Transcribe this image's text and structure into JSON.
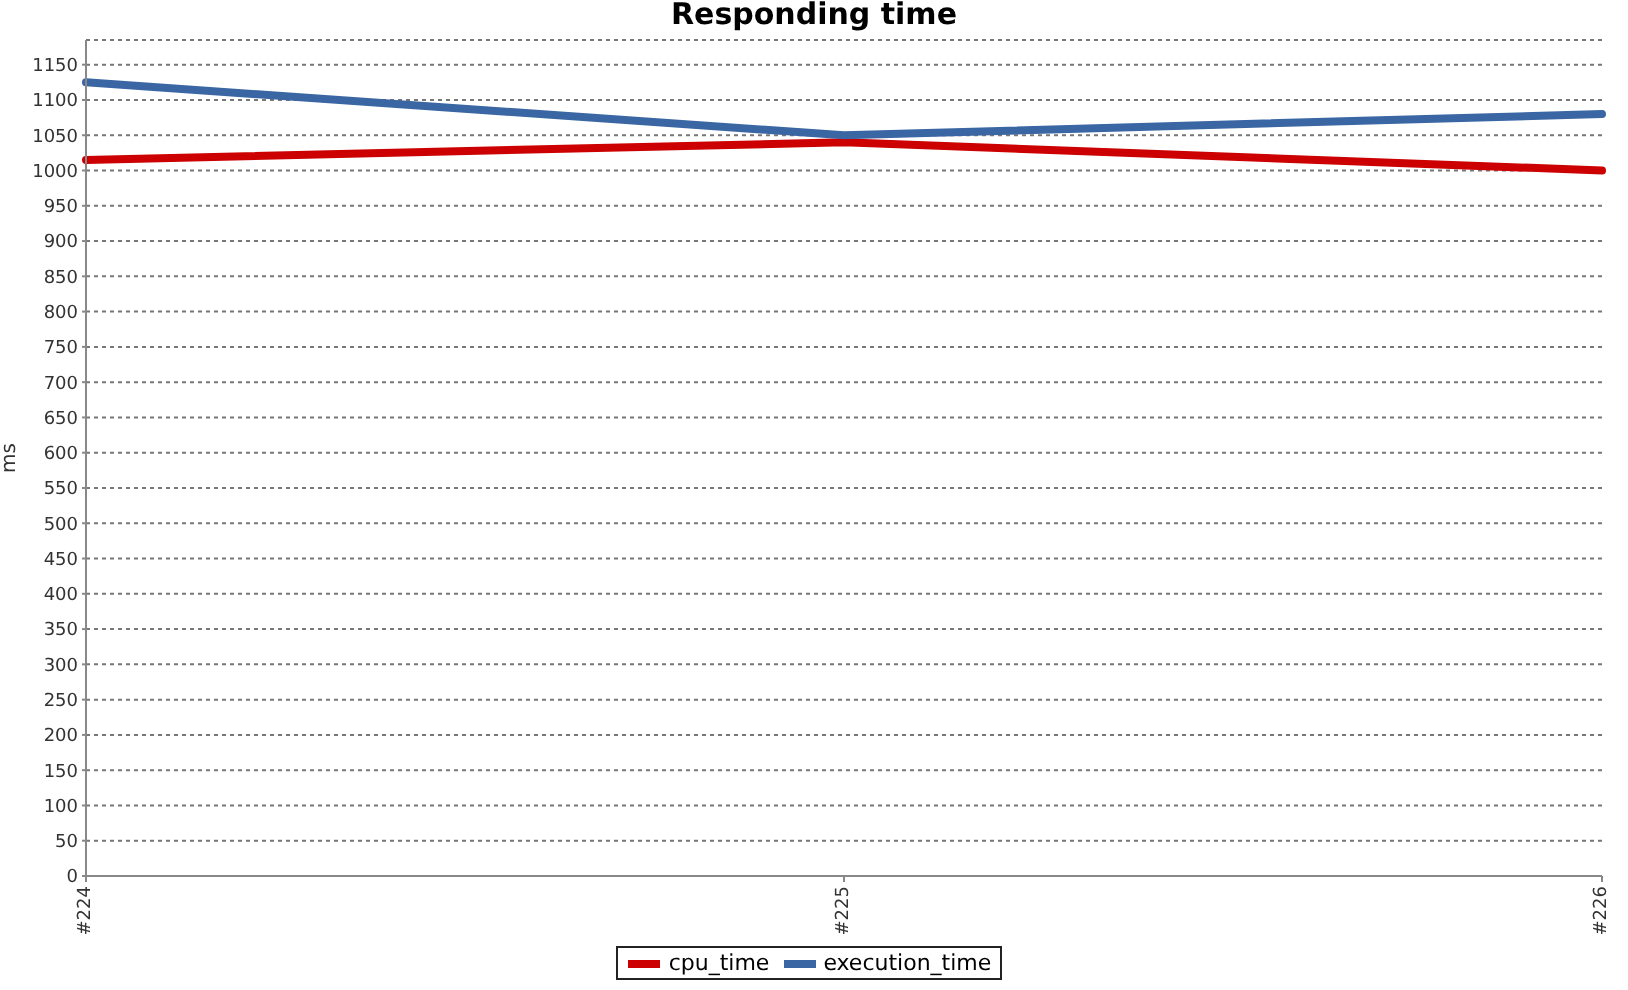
{
  "chart_data": {
    "type": "line",
    "title": "Responding time",
    "ylabel": "ms",
    "categories": [
      "#224",
      "#225",
      "#226"
    ],
    "series": [
      {
        "name": "cpu_time",
        "color": "#cc0000",
        "values": [
          1015,
          1040,
          1000
        ]
      },
      {
        "name": "execution_time",
        "color": "#3a66a3",
        "values": [
          1125,
          1050,
          1080
        ]
      }
    ],
    "ylim": [
      0,
      1185
    ],
    "yticks": [
      0,
      50,
      100,
      150,
      200,
      250,
      300,
      350,
      400,
      450,
      500,
      550,
      600,
      650,
      700,
      750,
      800,
      850,
      900,
      950,
      1000,
      1050,
      1100,
      1150
    ],
    "grid": "y",
    "legend": "bottom",
    "marker": "none",
    "line_style": "solid"
  }
}
